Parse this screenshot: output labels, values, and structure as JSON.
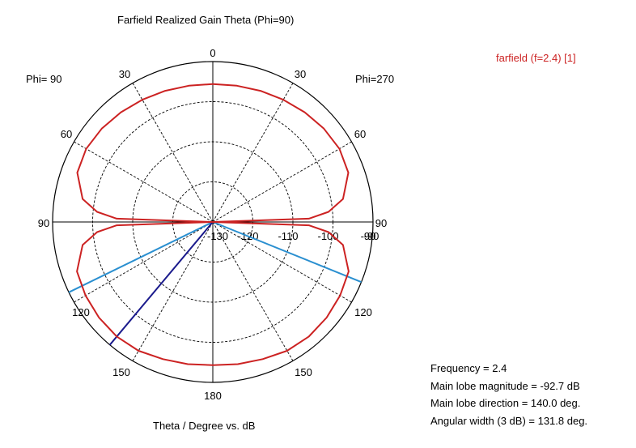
{
  "chart_data": {
    "type": "polar",
    "title": "Farfield Realized Gain Theta (Phi=90)",
    "xlabel": "Theta / Degree vs. dB",
    "left_label": "Phi= 90",
    "right_label": "Phi=270",
    "legend": [
      {
        "name": "farfield (f=2.4) [1]",
        "color": "#cc2222"
      }
    ],
    "angle_ticks_left": [
      "0",
      "30",
      "60",
      "90",
      "120",
      "150",
      "180"
    ],
    "angle_ticks_right": [
      "30",
      "60",
      "-90",
      "120",
      "150"
    ],
    "right_90_label": "90",
    "radial_ticks": [
      "-130",
      "-120",
      "-110",
      "-100",
      "-90"
    ],
    "r_range": [
      -130,
      -90
    ],
    "series": [
      {
        "name": "farfield (f=2.4) [1]",
        "color": "#cc2222",
        "theta_deg": [
          0,
          10,
          20,
          30,
          40,
          50,
          60,
          70,
          80,
          85,
          88,
          90,
          92,
          95,
          100,
          110,
          120,
          130,
          140,
          150,
          160,
          170,
          180
        ],
        "gain_db": [
          -95.6,
          -95.5,
          -95.2,
          -94.8,
          -94.3,
          -93.8,
          -93.5,
          -94.0,
          -97.0,
          -101.0,
          -106.0,
          -130.0,
          -106.0,
          -101.0,
          -97.0,
          -93.9,
          -93.3,
          -92.9,
          -92.7,
          -92.9,
          -93.6,
          -94.0,
          -94.3
        ]
      }
    ],
    "markers": {
      "main_lobe_direction_deg": 140.0,
      "main_lobe_color": "#1a1a8c",
      "beamwidth_color": "#2a8fd0",
      "beamwidth_limits_deg": [
        112,
        244
      ]
    },
    "info": {
      "frequency": "Frequency = 2.4",
      "main_lobe_magnitude": "Main lobe magnitude = -92.7 dB",
      "main_lobe_direction": "Main lobe direction =  140.0 deg.",
      "angular_width": "Angular width (3 dB) =  131.8 deg."
    }
  }
}
